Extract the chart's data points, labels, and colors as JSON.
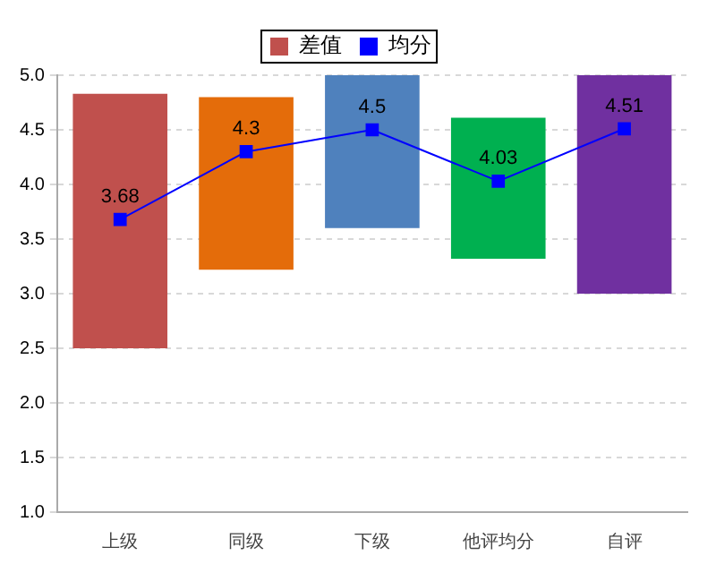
{
  "chart_data": {
    "type": "bar",
    "categories": [
      "上级",
      "同级",
      "下级",
      "他评均分",
      "自评"
    ],
    "series": [
      {
        "name": "差值",
        "colors": [
          "#c0504d",
          "#e46c0a",
          "#4f81bd",
          "#00b050",
          "#7030a0"
        ],
        "base": [
          2.5,
          3.22,
          3.6,
          3.32,
          3.0
        ],
        "values": [
          2.33,
          1.58,
          1.4,
          1.29,
          2.0
        ]
      },
      {
        "name": "均分",
        "type": "line",
        "color": "#0000ff",
        "marker": "square",
        "values": [
          3.68,
          4.3,
          4.5,
          4.03,
          4.51
        ],
        "value_labels": [
          "3.68",
          "4.3",
          "4.5",
          "4.03",
          "4.51"
        ]
      }
    ],
    "ylim": [
      1.0,
      5.0
    ],
    "yticks": [
      {
        "value": 1,
        "label": "1.0"
      },
      {
        "value": 1.5,
        "label": "1.5"
      },
      {
        "value": 2,
        "label": "2.0"
      },
      {
        "value": 2.5,
        "label": "2.5"
      },
      {
        "value": 3,
        "label": "3.0"
      },
      {
        "value": 3.5,
        "label": "3.5"
      },
      {
        "value": 4,
        "label": "4.0"
      },
      {
        "value": 4.5,
        "label": "4.5"
      },
      {
        "value": 5,
        "label": "5.0"
      }
    ],
    "grid": "y",
    "legend": "top"
  }
}
